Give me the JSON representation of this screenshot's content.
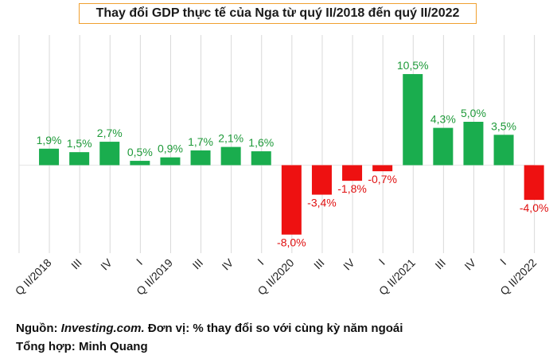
{
  "title": "Thay đổi GDP thực tế của Nga từ quý II/2018 đến quý II/2022",
  "chart_data": {
    "type": "bar",
    "categories": [
      "Q II/2018",
      "III",
      "IV",
      "I",
      "Q II/2019",
      "III",
      "IV",
      "I",
      "Q II/2020",
      "III",
      "IV",
      "I",
      "Q II/2021",
      "III",
      "IV",
      "I",
      "Q II/2022"
    ],
    "values": [
      1.9,
      1.5,
      2.7,
      0.5,
      0.9,
      1.7,
      2.1,
      1.6,
      -8.0,
      -3.4,
      -1.8,
      -0.7,
      10.5,
      4.3,
      5.0,
      3.5,
      -4.0
    ],
    "labels": [
      "1,9%",
      "1,5%",
      "2,7%",
      "0,5%",
      "0,9%",
      "1,7%",
      "2,1%",
      "1,6%",
      "-8,0%",
      "-3,4%",
      "-1,8%",
      "-0,7%",
      "10,5%",
      "4,3%",
      "5,0%",
      "3,5%",
      "-4,0%"
    ],
    "ylim": [
      -9,
      10.5
    ],
    "grid": "vertical",
    "colors": {
      "positive": "#1aad4e",
      "negative": "#ee1111",
      "positive_label": "#1f9a3a",
      "negative_label": "#e01010",
      "grid": "#d9d9d9"
    }
  },
  "footer": {
    "source_prefix": "Nguồn: ",
    "source_name": "Investing.com.",
    "source_suffix": " Đơn vị: % thay đổi so với cùng kỳ năm ngoái",
    "compiled": "Tổng hợp: Minh Quang"
  }
}
